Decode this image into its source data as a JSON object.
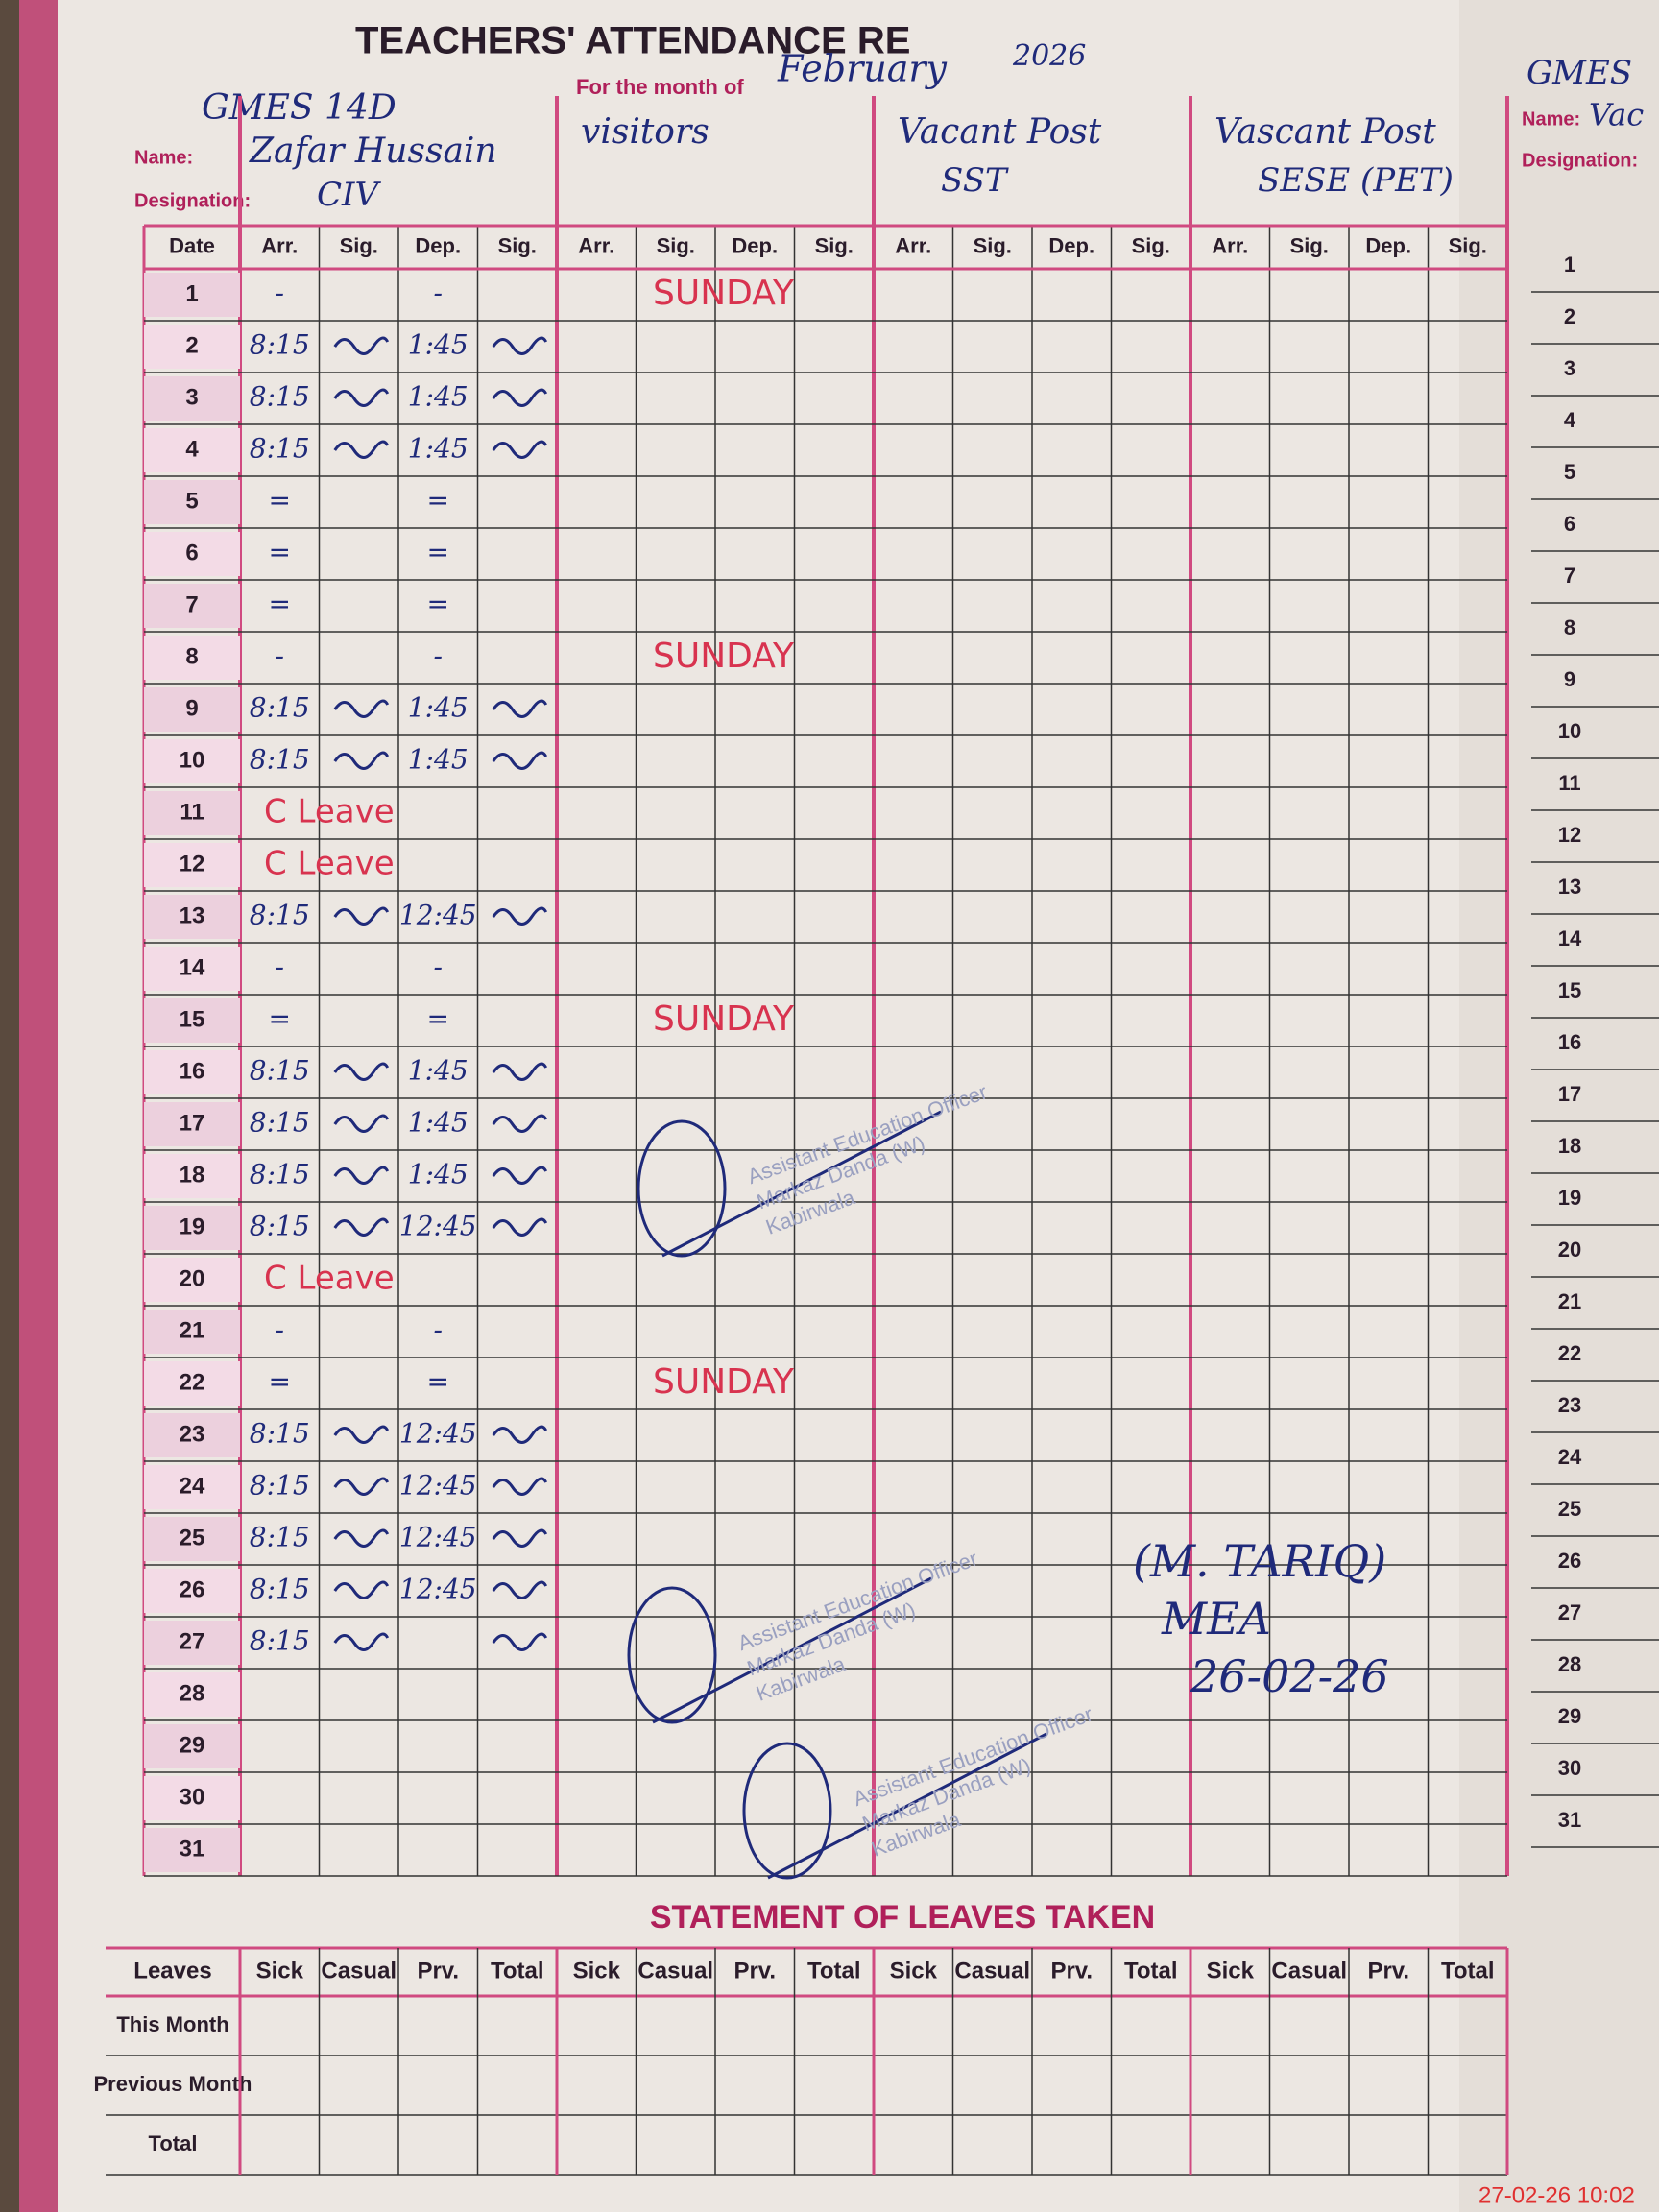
{
  "header": {
    "title": "TEACHERS' ATTENDANCE RE",
    "month_label": "For the month of",
    "month": "February",
    "year": "2026",
    "name_label": "Name:",
    "designation_label": "Designation:"
  },
  "teachers": [
    {
      "school": "GMES 14D",
      "name": "Zafar Hussain",
      "designation": "CIV"
    },
    {
      "name": "visitors"
    },
    {
      "name": "Vacant Post",
      "designation": "SST"
    },
    {
      "name": "Vascant Post",
      "designation": "SESE (PET)"
    }
  ],
  "columns": [
    "Date",
    "Arr.",
    "Sig.",
    "Dep.",
    "Sig."
  ],
  "rows": [
    {
      "date": "1",
      "arr": "-",
      "dep": "-",
      "visitor_note": "SUNDAY"
    },
    {
      "date": "2",
      "arr": "8:15",
      "dep": "1:45"
    },
    {
      "date": "3",
      "arr": "8:15",
      "dep": "1:45"
    },
    {
      "date": "4",
      "arr": "8:15",
      "dep": "1:45"
    },
    {
      "date": "5",
      "arr": "=",
      "dep": "="
    },
    {
      "date": "6",
      "arr": "=",
      "dep": "="
    },
    {
      "date": "7",
      "arr": "=",
      "dep": "="
    },
    {
      "date": "8",
      "arr": "-",
      "dep": "-",
      "visitor_note": "SUNDAY"
    },
    {
      "date": "9",
      "arr": "8:15",
      "dep": "1:45"
    },
    {
      "date": "10",
      "arr": "8:15",
      "dep": "1:45"
    },
    {
      "date": "11",
      "note": "C Leave"
    },
    {
      "date": "12",
      "note": "C Leave"
    },
    {
      "date": "13",
      "arr": "8:15",
      "dep": "12:45"
    },
    {
      "date": "14",
      "arr": "-",
      "dep": "-"
    },
    {
      "date": "15",
      "arr": "=",
      "dep": "=",
      "visitor_note": "SUNDAY"
    },
    {
      "date": "16",
      "arr": "8:15",
      "dep": "1:45"
    },
    {
      "date": "17",
      "arr": "8:15",
      "dep": "1:45"
    },
    {
      "date": "18",
      "arr": "8:15",
      "dep": "1:45"
    },
    {
      "date": "19",
      "arr": "8:15",
      "dep": "12:45"
    },
    {
      "date": "20",
      "note": "C Leave"
    },
    {
      "date": "21",
      "arr": "-",
      "dep": "-"
    },
    {
      "date": "22",
      "arr": "=",
      "dep": "=",
      "visitor_note": "SUNDAY"
    },
    {
      "date": "23",
      "arr": "8:15",
      "dep": "12:45"
    },
    {
      "date": "24",
      "arr": "8:15",
      "dep": "12:45"
    },
    {
      "date": "25",
      "arr": "8:15",
      "dep": "12:45"
    },
    {
      "date": "26",
      "arr": "8:15",
      "dep": "12:45"
    },
    {
      "date": "27",
      "arr": "8:15"
    },
    {
      "date": "28"
    },
    {
      "date": "29"
    },
    {
      "date": "30"
    },
    {
      "date": "31"
    }
  ],
  "signature": {
    "lines": [
      "(M. TARIQ)",
      "MEA",
      "26-02-26"
    ]
  },
  "stamp": {
    "lines": [
      "Assistant Education Officer",
      "Markaz Danda (W)",
      "Kabirwala"
    ]
  },
  "statement": {
    "title": "STATEMENT OF LEAVES TAKEN",
    "corner": "Leaves",
    "columns": [
      "Sick",
      "Casual",
      "Prv.",
      "Total"
    ],
    "rows": [
      "This Month",
      "Previous Month",
      "Total"
    ]
  },
  "right_page": {
    "school": "GMES",
    "name": "Vac"
  },
  "timestamp": "27-02-26 10:02"
}
